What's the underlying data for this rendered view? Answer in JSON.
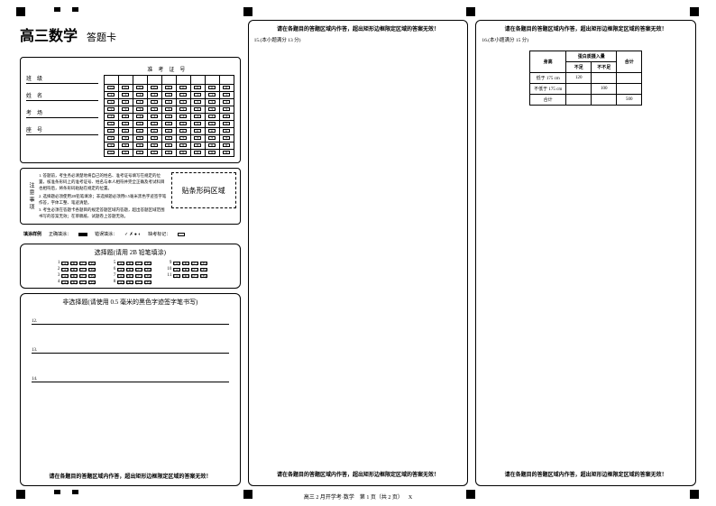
{
  "title": {
    "main": "高三数学",
    "sub": "答题卡"
  },
  "info_labels": [
    "班级",
    "姓名",
    "考场",
    "座号"
  ],
  "exam_id_title": "准考证号",
  "digits": [
    "0",
    "1",
    "2",
    "3",
    "4",
    "5",
    "6",
    "7",
    "8",
    "9"
  ],
  "id_cols": 9,
  "notes": {
    "label": "注意事项",
    "items": [
      "1. 答题前，考生务必清楚地将自己的姓名、准考证号填写在规定的位置，核准条形码上的准考证号、姓名与本人相符并完全正确及考试科目也相符后，将条形码粘贴在规定的位置。",
      "2. 选择题必须使用2B铅笔填涂；非选择题必须用0.5毫米黑色字迹签字笔作答，字体工整、笔迹清楚。",
      "3. 考生必须在答题卡各题目的规定答题区域内答题，超出答题区域范围书写的答案无效；在草稿纸、试题卷上答题无效。"
    ]
  },
  "barcode_label": "贴条形码区域",
  "fill_example": {
    "label": "填涂样例",
    "correct": "正确填涂：",
    "wrong": "错误填涂：",
    "wrong_marks": "✓ ✗ ● ◐",
    "partial": "缺考标记："
  },
  "mc": {
    "header": "选择题(请用 2B 铅笔填涂)",
    "options": [
      "A",
      "B",
      "C",
      "D"
    ],
    "questions": [
      [
        1,
        2,
        3,
        4
      ],
      [
        5,
        6,
        7,
        8
      ],
      [
        9,
        10,
        11
      ]
    ]
  },
  "fr": {
    "header": "非选择题(请使用 0.5 毫米的黑色字迹签字笔书写)",
    "lines": [
      "12.",
      "13.",
      "14."
    ]
  },
  "warning": "请在各题目的答题区域内作答，超出矩形边框限定区域的答案无效！",
  "q15": {
    "label": "15.(本小题满分 13 分)"
  },
  "q16": {
    "label": "16.(本小题满分 15 分)",
    "table": {
      "h1": "身高",
      "h2": "蛋白质摄入量",
      "h2a": "不足",
      "h2b": "不不足",
      "h3": "合计",
      "r1": "低于 175 cm",
      "r1v": "120",
      "r2": "不低于 175 cm",
      "r2v": "100",
      "r3": "合计",
      "r3v": "500"
    }
  },
  "footer": {
    "text": "高三 2 月开学考·数学　第 1 页（共 2 页）",
    "mark": "X"
  },
  "markers": [
    {
      "t": 8,
      "l": 18
    },
    {
      "t": 8,
      "l": 60,
      "sm": 1
    },
    {
      "t": 8,
      "l": 80,
      "sm": 1
    },
    {
      "t": 8,
      "l": 270
    },
    {
      "t": 8,
      "l": 517
    },
    {
      "t": 8,
      "l": 765
    },
    {
      "t": 543,
      "l": 18
    },
    {
      "t": 543,
      "l": 270
    },
    {
      "t": 543,
      "l": 517
    },
    {
      "t": 543,
      "l": 765
    },
    {
      "t": 543,
      "l": 60,
      "sm": 1
    },
    {
      "t": 543,
      "l": 80,
      "sm": 1
    }
  ]
}
